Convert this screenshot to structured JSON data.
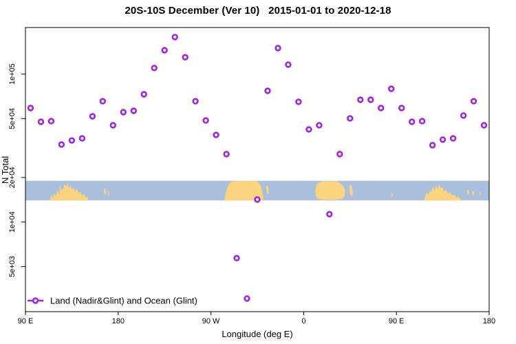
{
  "chart_data": {
    "type": "scatter",
    "title": "20S-10S December (Ver 10)   2015-01-01 to 2020-12-18",
    "xlabel": "Longitude (deg E)",
    "ylabel": "N Total",
    "x_range": [
      90,
      540
    ],
    "y_scale": "log",
    "grid": false,
    "marker": "open-circle",
    "marker_color": "#A020F0",
    "x_ticks": [
      {
        "lon": 90,
        "label": "90 E"
      },
      {
        "lon": 180,
        "label": "180"
      },
      {
        "lon": 270,
        "label": "90 W"
      },
      {
        "lon": 360,
        "label": "0"
      },
      {
        "lon": 450,
        "label": "90 E"
      },
      {
        "lon": 540,
        "label": "180"
      }
    ],
    "y_ticks": [
      {
        "value": 5000,
        "label": "5e+03"
      },
      {
        "value": 10000,
        "label": "1e+04"
      },
      {
        "value": 20000,
        "label": "2e+04"
      },
      {
        "value": 50000,
        "label": "5e+04"
      },
      {
        "value": 100000,
        "label": "1e+05"
      }
    ],
    "legend": {
      "label": "Land (Nadir&Glint) and Ocean (Glint)",
      "position": "bottom-left",
      "marker": "open-circle-on-line"
    },
    "points": [
      {
        "lon": 95,
        "n": 59000
      },
      {
        "lon": 105,
        "n": 47600
      },
      {
        "lon": 115,
        "n": 48100
      },
      {
        "lon": 125,
        "n": 33400
      },
      {
        "lon": 135,
        "n": 35600
      },
      {
        "lon": 145,
        "n": 36800
      },
      {
        "lon": 155,
        "n": 51900
      },
      {
        "lon": 165,
        "n": 65600
      },
      {
        "lon": 175,
        "n": 45100
      },
      {
        "lon": 185,
        "n": 55300
      },
      {
        "lon": 195,
        "n": 56500
      },
      {
        "lon": 205,
        "n": 73100
      },
      {
        "lon": 215,
        "n": 110000
      },
      {
        "lon": 225,
        "n": 145000
      },
      {
        "lon": 235,
        "n": 178000
      },
      {
        "lon": 245,
        "n": 130000
      },
      {
        "lon": 255,
        "n": 65600
      },
      {
        "lon": 265,
        "n": 48600
      },
      {
        "lon": 275,
        "n": 38800
      },
      {
        "lon": 285,
        "n": 28800
      },
      {
        "lon": 295,
        "n": 5700
      },
      {
        "lon": 305,
        "n": 3040
      },
      {
        "lon": 315,
        "n": 14200
      },
      {
        "lon": 325,
        "n": 77100
      },
      {
        "lon": 335,
        "n": 150000
      },
      {
        "lon": 345,
        "n": 116000
      },
      {
        "lon": 355,
        "n": 65000
      },
      {
        "lon": 365,
        "n": 42300
      },
      {
        "lon": 375,
        "n": 45100
      },
      {
        "lon": 385,
        "n": 11300
      },
      {
        "lon": 395,
        "n": 28800
      },
      {
        "lon": 405,
        "n": 50200
      },
      {
        "lon": 415,
        "n": 67100
      },
      {
        "lon": 425,
        "n": 67100
      },
      {
        "lon": 435,
        "n": 59000
      },
      {
        "lon": 445,
        "n": 79600
      },
      {
        "lon": 455,
        "n": 59000
      },
      {
        "lon": 465,
        "n": 47600
      },
      {
        "lon": 475,
        "n": 48100
      },
      {
        "lon": 485,
        "n": 33100
      },
      {
        "lon": 495,
        "n": 36100
      },
      {
        "lon": 505,
        "n": 36800
      },
      {
        "lon": 515,
        "n": 52500
      },
      {
        "lon": 525,
        "n": 65600
      },
      {
        "lon": 535,
        "n": 45100
      }
    ],
    "map_band": {
      "kind": "land-ocean strip across plot",
      "ocean_color": "#A9BFDC",
      "land_color": "#FBD47E",
      "value_top": 19000,
      "value_bottom": 14000,
      "land_polygons": [
        {
          "name": "australia-west-copy",
          "pts": [
            [
              114,
              1
            ],
            [
              115,
              0.72
            ],
            [
              116.5,
              0.88
            ],
            [
              118,
              0.62
            ],
            [
              119.5,
              0.8
            ],
            [
              121,
              0.5
            ],
            [
              122.5,
              0.68
            ],
            [
              124,
              0.22
            ],
            [
              125,
              0.5
            ],
            [
              126.5,
              0.4
            ],
            [
              128,
              0.16
            ],
            [
              129.5,
              0.3
            ],
            [
              131,
              0.12
            ],
            [
              132,
              0.38
            ],
            [
              133.5,
              0.22
            ],
            [
              135,
              0.45
            ],
            [
              136.5,
              0.35
            ],
            [
              138,
              0.55
            ],
            [
              140,
              0.42
            ],
            [
              141.5,
              0.62
            ],
            [
              143,
              0.55
            ],
            [
              145,
              0.75
            ],
            [
              147,
              0.68
            ],
            [
              148.5,
              0.85
            ],
            [
              150,
              0.8
            ],
            [
              151,
              1
            ]
          ]
        },
        {
          "name": "island-new-caledonia-west",
          "pts": [
            [
              166,
              0.45
            ],
            [
              167.5,
              0.38
            ],
            [
              168.2,
              0.62
            ],
            [
              166.8,
              0.72
            ]
          ]
        },
        {
          "name": "island-fiji-west",
          "pts": [
            [
              169.8,
              0.55
            ],
            [
              170.8,
              0.5
            ],
            [
              171.2,
              0.7
            ],
            [
              170.2,
              0.78
            ]
          ]
        },
        {
          "name": "south-america",
          "pts": [
            [
              283,
              1
            ],
            [
              284,
              0.72
            ],
            [
              285.5,
              0.4
            ],
            [
              287.5,
              0.15
            ],
            [
              290,
              0.04
            ],
            [
              295,
              0.01
            ],
            [
              314,
              0.01
            ],
            [
              316.5,
              0.08
            ],
            [
              318.5,
              0.3
            ],
            [
              320,
              0.6
            ],
            [
              321,
              1
            ]
          ]
        },
        {
          "name": "brazil-east-tip",
          "pts": [
            [
              323.5,
              0.3
            ],
            [
              325,
              0.22
            ],
            [
              326,
              0.42
            ],
            [
              325.8,
              0.68
            ],
            [
              324.2,
              0.6
            ]
          ]
        },
        {
          "name": "africa",
          "pts": [
            [
              372,
              0.8
            ],
            [
              371.2,
              0.5
            ],
            [
              372.2,
              0.22
            ],
            [
              374.5,
              0.08
            ],
            [
              378,
              0.02
            ],
            [
              391,
              0.02
            ],
            [
              395,
              0.1
            ],
            [
              398.5,
              0.28
            ],
            [
              400.3,
              0.52
            ],
            [
              399.8,
              0.78
            ],
            [
              397,
              0.93
            ],
            [
              390,
              0.97
            ],
            [
              377,
              0.96
            ],
            [
              373.5,
              0.92
            ]
          ]
        },
        {
          "name": "madagascar",
          "pts": [
            [
              404.3,
              0.28
            ],
            [
              405.8,
              0.18
            ],
            [
              407.3,
              0.4
            ],
            [
              407.6,
              0.68
            ],
            [
              406.2,
              0.82
            ],
            [
              404.8,
              0.62
            ]
          ]
        },
        {
          "name": "indian-ocean-speck",
          "pts": [
            [
              445,
              0.68
            ],
            [
              446,
              0.62
            ],
            [
              446.4,
              0.78
            ],
            [
              445.4,
              0.84
            ]
          ]
        },
        {
          "name": "australia-east-copy",
          "pts": [
            [
              477,
              1
            ],
            [
              478,
              0.78
            ],
            [
              479.5,
              0.6
            ],
            [
              481,
              0.72
            ],
            [
              482.5,
              0.48
            ],
            [
              484,
              0.6
            ],
            [
              485.5,
              0.28
            ],
            [
              487,
              0.52
            ],
            [
              488.5,
              0.22
            ],
            [
              490,
              0.46
            ],
            [
              491.5,
              0.14
            ],
            [
              493,
              0.4
            ],
            [
              494.5,
              0.3
            ],
            [
              496,
              0.55
            ],
            [
              498,
              0.45
            ],
            [
              500,
              0.65
            ],
            [
              502,
              0.58
            ],
            [
              504,
              0.75
            ],
            [
              506,
              0.7
            ],
            [
              508,
              0.85
            ],
            [
              510,
              0.8
            ],
            [
              512,
              0.92
            ],
            [
              513,
              1
            ]
          ]
        },
        {
          "name": "island-new-caledonia-east",
          "pts": [
            [
              518.5,
              0.48
            ],
            [
              520,
              0.42
            ],
            [
              520.6,
              0.65
            ],
            [
              519.2,
              0.72
            ]
          ]
        },
        {
          "name": "island-vanuatu-east",
          "pts": [
            [
              523.5,
              0.55
            ],
            [
              525,
              0.5
            ],
            [
              525.5,
              0.7
            ],
            [
              524,
              0.76
            ]
          ]
        },
        {
          "name": "island-fiji-east",
          "pts": [
            [
              530.5,
              0.6
            ],
            [
              531.5,
              0.55
            ],
            [
              531.8,
              0.72
            ],
            [
              530.8,
              0.76
            ]
          ]
        }
      ]
    }
  }
}
